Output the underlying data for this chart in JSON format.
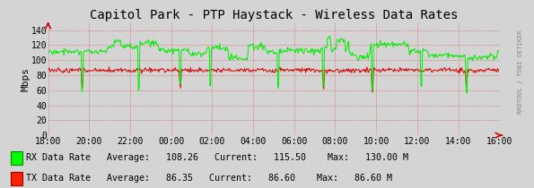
{
  "title": "Capitol Park - PTP Haystack - Wireless Data Rates",
  "ylabel": "Mbps",
  "fig_bg_color": "#d4d4d4",
  "plot_bg_color": "#d4d4d4",
  "grid_color": "#ff8888",
  "ylim": [
    0,
    150
  ],
  "yticks": [
    0,
    20,
    40,
    60,
    80,
    100,
    120,
    140
  ],
  "xtick_labels": [
    "18:00",
    "20:00",
    "22:00",
    "00:00",
    "02:00",
    "04:00",
    "06:00",
    "08:00",
    "10:00",
    "12:00",
    "14:00",
    "16:00"
  ],
  "legend": [
    {
      "label": "RX Data Rate",
      "color": "#00ff00",
      "edge_color": "#008800",
      "avg": "108.26",
      "current": "115.50",
      "max": "130.00 M"
    },
    {
      "label": "TX Data Rate",
      "color": "#ff2200",
      "edge_color": "#880000",
      "avg": "86.35",
      "current": "86.60",
      "max": "86.60 M"
    }
  ],
  "right_label": "RRDTOOL / TOBI OETIKER",
  "rx_color": "#00ee00",
  "tx_color": "#dd0000",
  "n_points": 600
}
